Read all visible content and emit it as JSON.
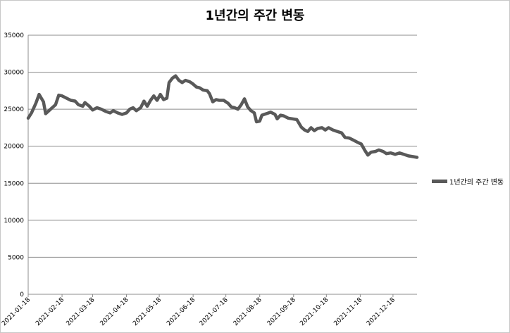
{
  "chart_data": {
    "type": "line",
    "title": "1년간의 주간 변동",
    "xlabel": "",
    "ylabel": "",
    "ylim": [
      0,
      35000
    ],
    "y_ticks": [
      0,
      5000,
      10000,
      15000,
      20000,
      25000,
      30000,
      35000
    ],
    "x_tick_labels": [
      "2021-01-18",
      "2021-02-18",
      "2021-03-18",
      "2021-04-18",
      "2021-05-18",
      "2021-06-18",
      "2021-07-18",
      "2021-08-18",
      "2021-09-18",
      "2021-10-18",
      "2021-11-18",
      "2021-12-18"
    ],
    "grid": "horizontal",
    "legend_position": "right",
    "line_color": "#595959",
    "series": [
      {
        "name": "1년간의 주간 변동",
        "points": [
          [
            "2021-01-18",
            23800
          ],
          [
            "2021-01-21",
            24500
          ],
          [
            "2021-01-25",
            25800
          ],
          [
            "2021-01-28",
            27000
          ],
          [
            "2021-02-01",
            26000
          ],
          [
            "2021-02-03",
            24400
          ],
          [
            "2021-02-06",
            24800
          ],
          [
            "2021-02-09",
            25200
          ],
          [
            "2021-02-12",
            25600
          ],
          [
            "2021-02-15",
            26900
          ],
          [
            "2021-02-18",
            26800
          ],
          [
            "2021-02-22",
            26500
          ],
          [
            "2021-02-26",
            26200
          ],
          [
            "2021-03-02",
            26100
          ],
          [
            "2021-03-05",
            25600
          ],
          [
            "2021-03-09",
            25400
          ],
          [
            "2021-03-11",
            25900
          ],
          [
            "2021-03-15",
            25400
          ],
          [
            "2021-03-18",
            24900
          ],
          [
            "2021-03-22",
            25200
          ],
          [
            "2021-03-26",
            25000
          ],
          [
            "2021-03-30",
            24700
          ],
          [
            "2021-04-03",
            24500
          ],
          [
            "2021-04-06",
            24800
          ],
          [
            "2021-04-10",
            24500
          ],
          [
            "2021-04-14",
            24300
          ],
          [
            "2021-04-18",
            24500
          ],
          [
            "2021-04-21",
            25000
          ],
          [
            "2021-04-24",
            25200
          ],
          [
            "2021-04-27",
            24800
          ],
          [
            "2021-05-01",
            25200
          ],
          [
            "2021-05-04",
            26100
          ],
          [
            "2021-05-07",
            25400
          ],
          [
            "2021-05-10",
            26200
          ],
          [
            "2021-05-13",
            26800
          ],
          [
            "2021-05-16",
            26200
          ],
          [
            "2021-05-19",
            27000
          ],
          [
            "2021-05-22",
            26300
          ],
          [
            "2021-05-25",
            26500
          ],
          [
            "2021-05-27",
            28600
          ],
          [
            "2021-05-30",
            29200
          ],
          [
            "2021-06-02",
            29500
          ],
          [
            "2021-06-05",
            28900
          ],
          [
            "2021-06-08",
            28600
          ],
          [
            "2021-06-11",
            28900
          ],
          [
            "2021-06-15",
            28700
          ],
          [
            "2021-06-18",
            28400
          ],
          [
            "2021-06-21",
            28000
          ],
          [
            "2021-06-24",
            27900
          ],
          [
            "2021-06-27",
            27600
          ],
          [
            "2021-07-01",
            27500
          ],
          [
            "2021-07-03",
            27100
          ],
          [
            "2021-07-06",
            26000
          ],
          [
            "2021-07-09",
            26300
          ],
          [
            "2021-07-12",
            26200
          ],
          [
            "2021-07-16",
            26200
          ],
          [
            "2021-07-20",
            25800
          ],
          [
            "2021-07-23",
            25300
          ],
          [
            "2021-07-26",
            25200
          ],
          [
            "2021-07-29",
            25000
          ],
          [
            "2021-08-01",
            25600
          ],
          [
            "2021-08-04",
            26400
          ],
          [
            "2021-08-07",
            25300
          ],
          [
            "2021-08-10",
            24800
          ],
          [
            "2021-08-13",
            24500
          ],
          [
            "2021-08-15",
            23300
          ],
          [
            "2021-08-18",
            23400
          ],
          [
            "2021-08-20",
            24200
          ],
          [
            "2021-08-24",
            24400
          ],
          [
            "2021-08-28",
            24600
          ],
          [
            "2021-09-01",
            24300
          ],
          [
            "2021-09-03",
            23700
          ],
          [
            "2021-09-06",
            24200
          ],
          [
            "2021-09-09",
            24100
          ],
          [
            "2021-09-13",
            23800
          ],
          [
            "2021-09-17",
            23700
          ],
          [
            "2021-09-21",
            23600
          ],
          [
            "2021-09-25",
            22600
          ],
          [
            "2021-09-28",
            22200
          ],
          [
            "2021-10-01",
            22000
          ],
          [
            "2021-10-04",
            22500
          ],
          [
            "2021-10-07",
            22100
          ],
          [
            "2021-10-10",
            22400
          ],
          [
            "2021-10-14",
            22500
          ],
          [
            "2021-10-17",
            22200
          ],
          [
            "2021-10-20",
            22500
          ],
          [
            "2021-10-24",
            22200
          ],
          [
            "2021-10-28",
            22000
          ],
          [
            "2021-11-01",
            21800
          ],
          [
            "2021-11-04",
            21200
          ],
          [
            "2021-11-08",
            21100
          ],
          [
            "2021-11-12",
            20800
          ],
          [
            "2021-11-16",
            20500
          ],
          [
            "2021-11-19",
            20300
          ],
          [
            "2021-11-22",
            19500
          ],
          [
            "2021-11-25",
            18800
          ],
          [
            "2021-11-28",
            19200
          ],
          [
            "2021-12-02",
            19300
          ],
          [
            "2021-12-05",
            19500
          ],
          [
            "2021-12-09",
            19300
          ],
          [
            "2021-12-12",
            19000
          ],
          [
            "2021-12-16",
            19100
          ],
          [
            "2021-12-20",
            18900
          ],
          [
            "2021-12-24",
            19100
          ],
          [
            "2021-12-28",
            18900
          ],
          [
            "2022-01-01",
            18700
          ],
          [
            "2022-01-05",
            18600
          ],
          [
            "2022-01-09",
            18500
          ]
        ]
      }
    ]
  }
}
